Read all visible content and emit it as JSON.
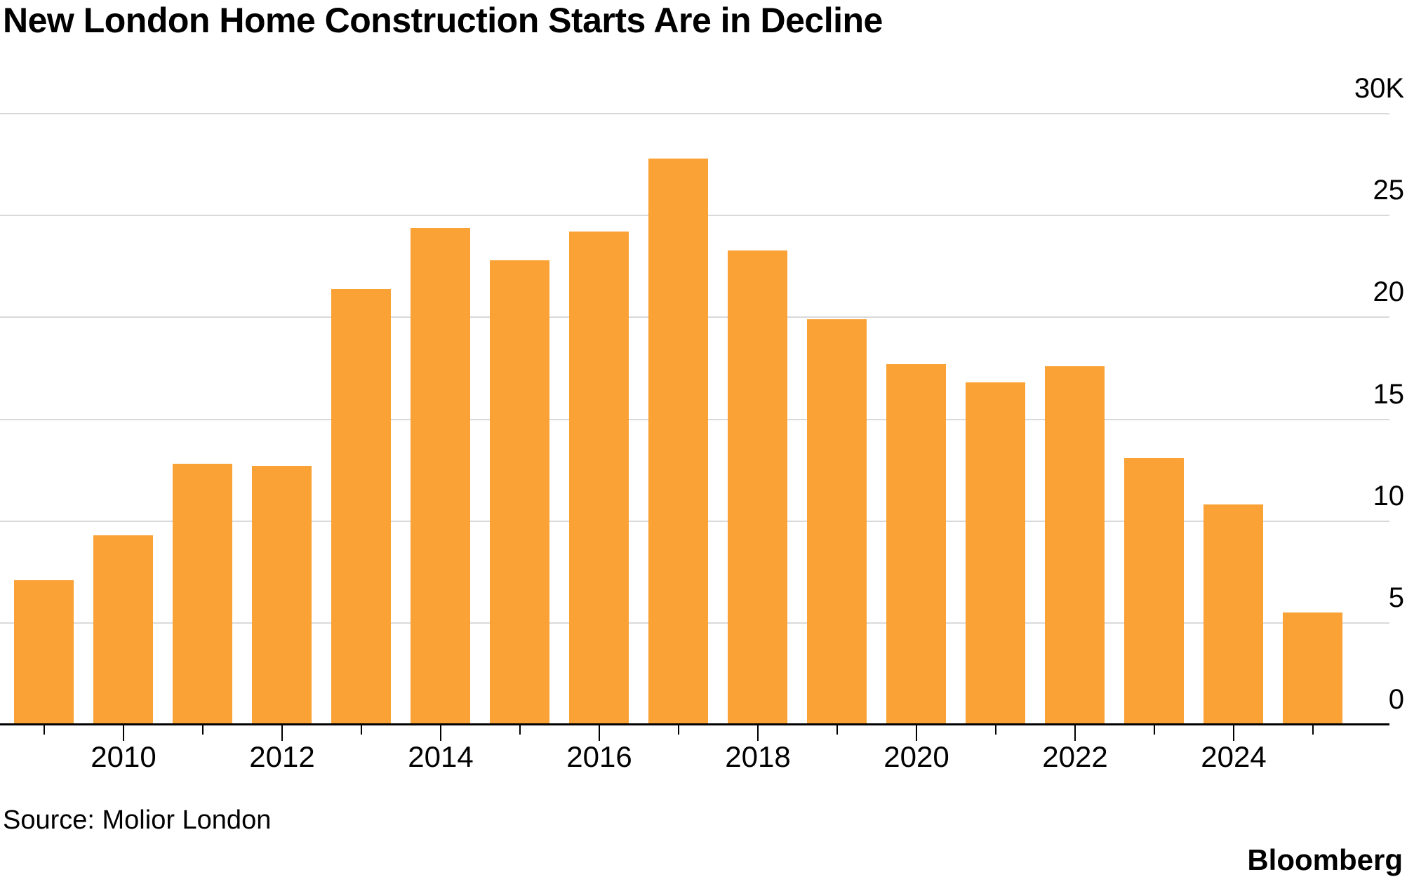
{
  "header": {
    "title": "New London Home Construction Starts Are in Decline"
  },
  "chart_data": {
    "type": "bar",
    "title": "New London Home Construction Starts Are in Decline",
    "xlabel": "",
    "ylabel": "",
    "unit": "K",
    "ylim": [
      0,
      30
    ],
    "grid": "horizontal",
    "legend": "none",
    "y_axis_side": "right",
    "bar_color": "#FAA235",
    "gridline_color": "#D9D9D9",
    "axis_color": "#000000",
    "categories": [
      "2009",
      "2010",
      "2011",
      "2012",
      "2013",
      "2014",
      "2015",
      "2016",
      "2017",
      "2018",
      "2019",
      "2020",
      "2021",
      "2022",
      "2023",
      "2024",
      "2025"
    ],
    "values": [
      7.1,
      9.3,
      12.8,
      12.7,
      21.4,
      24.4,
      22.8,
      24.2,
      27.8,
      23.3,
      19.9,
      17.7,
      16.8,
      17.6,
      13.1,
      10.8,
      5.5
    ],
    "y_ticks": [
      {
        "value": 30,
        "label": "30K"
      },
      {
        "value": 25,
        "label": "25"
      },
      {
        "value": 20,
        "label": "20"
      },
      {
        "value": 15,
        "label": "15"
      },
      {
        "value": 10,
        "label": "10"
      },
      {
        "value": 5,
        "label": "5"
      },
      {
        "value": 0,
        "label": "0"
      }
    ],
    "x_tick_labels": [
      "2010",
      "2012",
      "2014",
      "2016",
      "2018",
      "2020",
      "2022",
      "2024"
    ]
  },
  "footer": {
    "source": "Source: Molior London",
    "brand": "Bloomberg"
  }
}
